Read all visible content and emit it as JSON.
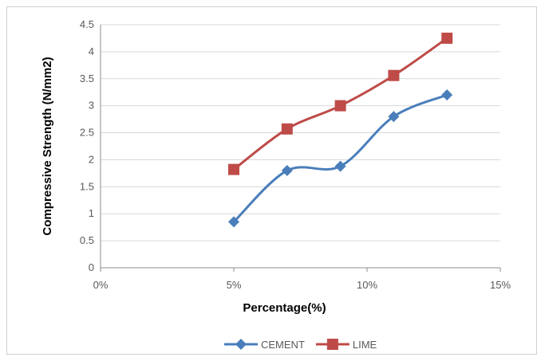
{
  "chart_data": {
    "type": "line",
    "xlabel": "Percentage(%)",
    "ylabel": "Compressive Strength (N/mm2)",
    "xlim": [
      0,
      15
    ],
    "ylim": [
      0,
      4.5
    ],
    "x_ticks": [
      "0%",
      "5%",
      "10%",
      "15%"
    ],
    "y_ticks": [
      "0",
      "0.5",
      "1",
      "1.5",
      "2",
      "2.5",
      "3",
      "3.5",
      "4",
      "4.5"
    ],
    "grid": "horizontal",
    "legend_position": "bottom",
    "x": [
      5,
      7,
      9,
      11,
      13
    ],
    "series": [
      {
        "name": "CEMENT",
        "color": "#4a7ebb",
        "marker": "diamond",
        "values": [
          0.85,
          1.8,
          1.88,
          2.8,
          3.2
        ]
      },
      {
        "name": "LIME",
        "color": "#be4b48",
        "marker": "square",
        "values": [
          1.82,
          2.57,
          3.0,
          3.56,
          4.25
        ]
      }
    ]
  }
}
